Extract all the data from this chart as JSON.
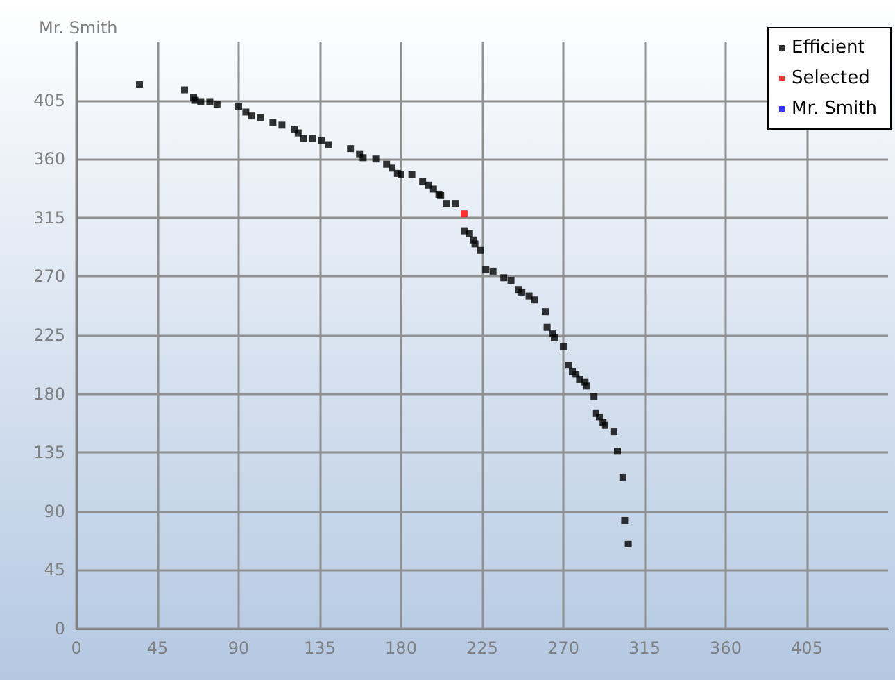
{
  "chart_data": {
    "type": "scatter",
    "ylabel": "Mr. Smith",
    "xlim": [
      0,
      450
    ],
    "ylim": [
      0,
      450
    ],
    "xticks": [
      0,
      45,
      90,
      135,
      180,
      225,
      270,
      315,
      360,
      405
    ],
    "yticks": [
      0,
      45,
      90,
      135,
      180,
      225,
      270,
      315,
      360,
      405
    ],
    "grid": true,
    "legend": "top right",
    "marker": "square",
    "series": [
      {
        "name": "Efficient",
        "color": "#000000",
        "x": [
          35,
          60,
          65,
          66,
          69,
          74,
          78,
          90,
          94,
          97,
          102,
          109,
          114,
          121,
          123,
          126,
          131,
          136,
          140,
          152,
          157,
          159,
          166,
          172,
          175,
          178,
          180,
          186,
          192,
          195,
          198,
          201,
          202,
          205,
          210,
          215,
          218,
          220,
          221,
          224,
          227,
          231,
          237,
          241,
          245,
          247,
          251,
          254,
          260,
          261,
          264,
          265,
          270,
          273,
          275,
          277,
          279,
          282,
          283,
          287,
          288,
          290,
          292,
          293,
          298,
          300,
          303,
          304,
          306
        ],
        "values": [
          417,
          413,
          407,
          405,
          404,
          404,
          402,
          400,
          396,
          393,
          392,
          388,
          386,
          383,
          380,
          376,
          376,
          374,
          371,
          368,
          364,
          361,
          360,
          356,
          353,
          349,
          348,
          348,
          343,
          340,
          337,
          333,
          332,
          326,
          326,
          305,
          303,
          298,
          295,
          290,
          275,
          274,
          269,
          267,
          260,
          258,
          255,
          252,
          243,
          231,
          226,
          223,
          216,
          202,
          197,
          195,
          191,
          189,
          186,
          178,
          165,
          162,
          158,
          156,
          151,
          136,
          116,
          83,
          65
        ]
      },
      {
        "name": "Selected",
        "color": "#ff0000",
        "x": [
          215
        ],
        "values": [
          318
        ]
      },
      {
        "name": "Mr. Smith",
        "color": "#0000ff"
      }
    ]
  }
}
